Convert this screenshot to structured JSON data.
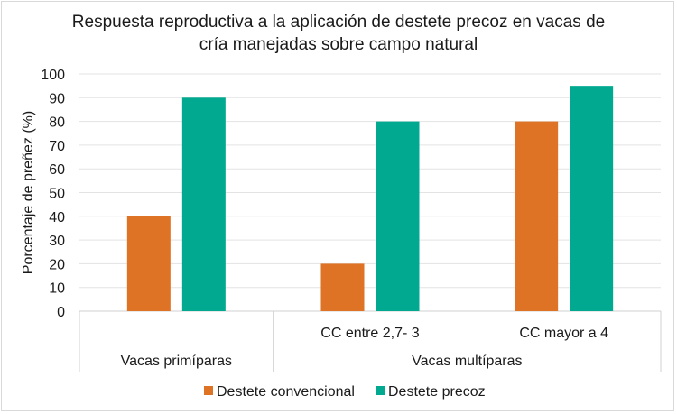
{
  "chart_data": {
    "type": "bar",
    "title": "Respuesta reproductiva a la aplicación de destete precoz en vacas de cría manejadas sobre campo natural",
    "title_lines": [
      "Respuesta reproductiva a la aplicación de destete precoz en vacas de",
      "cría manejadas sobre campo natural"
    ],
    "ylabel": "Porcentaje de preñez (%)",
    "xlabel": "",
    "ylim": [
      0,
      100
    ],
    "yticks": [
      0,
      10,
      20,
      30,
      40,
      50,
      60,
      70,
      80,
      90,
      100
    ],
    "grid": true,
    "legend_position": "bottom",
    "categories": [
      "",
      "CC entre 2,7- 3",
      "CC mayor a 4"
    ],
    "category_groups": [
      {
        "label": "Vacas primíparas",
        "span": [
          0,
          0
        ]
      },
      {
        "label": "Vacas multíparas",
        "span": [
          1,
          2
        ]
      }
    ],
    "series": [
      {
        "name": "Destete convencional",
        "color": "#DE7225",
        "values": [
          40,
          20,
          80
        ]
      },
      {
        "name": "Destete precoz",
        "color": "#00A98F",
        "values": [
          90,
          80,
          95
        ]
      }
    ]
  }
}
